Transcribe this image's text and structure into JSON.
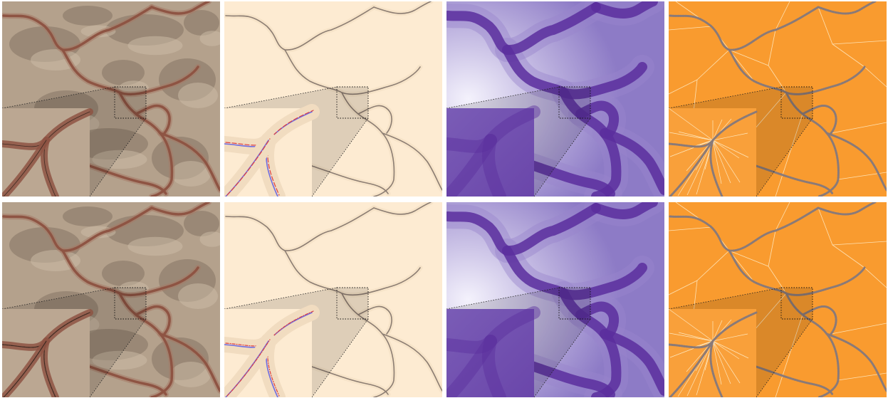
{
  "figure": {
    "columns": [
      {
        "id": "terrain",
        "colors": {
          "bg": "#b4a18c",
          "dark": "#857564",
          "light": "#cdbda8",
          "river": "#8e5443",
          "halo": "#a67a66"
        }
      },
      {
        "id": "vector",
        "colors": {
          "bg": "#fdebd2",
          "halo": "#f1dcc0",
          "line": "#8c7d72",
          "blue": "#6f6ce0",
          "red": "#e04040"
        }
      },
      {
        "id": "distance",
        "colors": {
          "light": "#f0eefb",
          "mid": "#9a86cc",
          "dark": "#5a2e9e"
        }
      },
      {
        "id": "voronoi",
        "colors": {
          "bg": "#f99b2f",
          "edge": "#fff4d6",
          "river": "#8a7a78"
        }
      }
    ],
    "rows": [
      {
        "id": "top"
      },
      {
        "id": "bottom"
      }
    ]
  }
}
